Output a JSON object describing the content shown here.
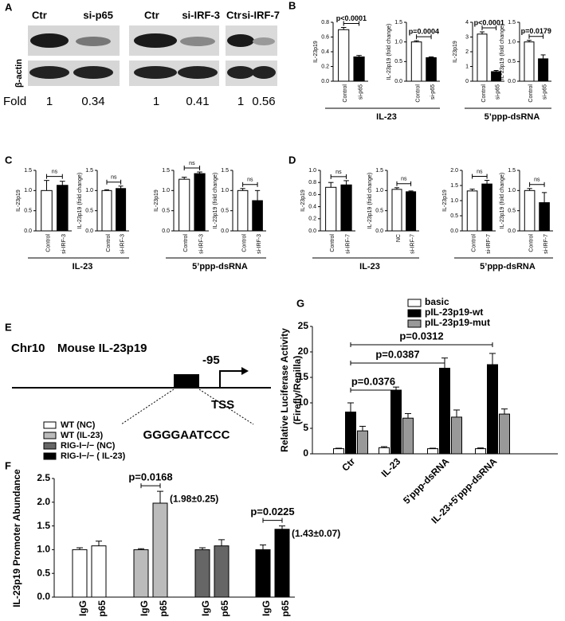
{
  "panel_labels": [
    "A",
    "B",
    "C",
    "D",
    "E",
    "F",
    "G"
  ],
  "blot": {
    "headers": [
      "Ctr",
      "si-p65",
      "Ctr",
      "si-IRF-3",
      "Ctr",
      "si-IRF-7"
    ],
    "loading_label": "β-actin",
    "fold_label": "Fold",
    "fold": [
      1,
      0.34,
      1,
      0.41,
      1,
      0.56
    ]
  },
  "diagram": {
    "chromosome": "Chr10",
    "gene": "Mouse IL-23p19",
    "position": "-95",
    "tss": "TSS",
    "motif": "GGGGAATCCC"
  },
  "group_labels": [
    "IL-23",
    "5’ppp-dsRNA",
    "IL-23",
    "5’ppp-dsRNA",
    "IL-23",
    "5’ppp-dsRNA"
  ],
  "chart_data": [
    {
      "type": "bar",
      "ylabel": "IL-23p19",
      "categories": [
        "Control",
        "si-p65"
      ],
      "values": [
        0.7,
        0.33
      ],
      "errors": [
        0.03,
        0.02
      ],
      "colors": [
        "#ffffff",
        "#000000"
      ],
      "ylim": [
        0,
        0.8
      ],
      "yticks": [
        {
          "value": 0,
          "label": "0.0"
        },
        0.2,
        0.4,
        0.6,
        0.8
      ],
      "annotation": "p<0.0001"
    },
    {
      "type": "bar",
      "ylabel": "IL-23p19 (fold change)",
      "categories": [
        "Control",
        "si-p65"
      ],
      "values": [
        1,
        0.6
      ],
      "errors": [
        0.03,
        0.02
      ],
      "colors": [
        "#ffffff",
        "#000000"
      ],
      "ylim": [
        0,
        1.5
      ],
      "yticks": [
        {
          "value": 0,
          "label": "0.0"
        },
        0.5,
        {
          "value": 1,
          "label": "1.0"
        },
        1.5
      ],
      "annotation": "p=0.0004"
    },
    {
      "type": "bar",
      "ylabel": "IL-23p19",
      "categories": [
        "Control",
        "si-p65"
      ],
      "values": [
        3.2,
        0.65
      ],
      "errors": [
        0.15,
        0.08
      ],
      "colors": [
        "#ffffff",
        "#000000"
      ],
      "ylim": [
        0,
        4
      ],
      "yticks": [
        0,
        1,
        2,
        3,
        4
      ],
      "annotation": "p<0.0001"
    },
    {
      "type": "bar",
      "ylabel": "IL-23p19 (fold change)",
      "categories": [
        "Control",
        "si-p65"
      ],
      "values": [
        1,
        0.57
      ],
      "errors": [
        0.04,
        0.1
      ],
      "colors": [
        "#ffffff",
        "#000000"
      ],
      "ylim": [
        0,
        1.5
      ],
      "yticks": [
        {
          "value": 0,
          "label": "0.0"
        },
        0.5,
        {
          "value": 1,
          "label": "1.0"
        },
        1.5
      ],
      "annotation": "p=0.0179"
    },
    {
      "type": "bar",
      "ylabel": "IL-23p19",
      "categories": [
        "Control",
        "si-IRF-3"
      ],
      "values": [
        1,
        1.13
      ],
      "errors": [
        0.25,
        0.1
      ],
      "colors": [
        "#ffffff",
        "#000000"
      ],
      "ylim": [
        0,
        1.5
      ],
      "yticks": [
        {
          "value": 0,
          "label": "0.0"
        },
        0.5,
        {
          "value": 1,
          "label": "1.0"
        },
        1.5
      ],
      "annotation": "ns"
    },
    {
      "type": "bar",
      "ylabel": "IL-23p19 (fold change)",
      "categories": [
        "Control",
        "si-IRF-3"
      ],
      "values": [
        1,
        1.05
      ],
      "errors": [
        0.02,
        0.06
      ],
      "colors": [
        "#ffffff",
        "#000000"
      ],
      "ylim": [
        0,
        1.5
      ],
      "yticks": [
        {
          "value": 0,
          "label": "0.0"
        },
        0.5,
        {
          "value": 1,
          "label": "1.0"
        },
        1.5
      ],
      "annotation": "ns"
    },
    {
      "type": "bar",
      "ylabel": "IL-23p19",
      "categories": [
        "Control",
        "si-IRF-3"
      ],
      "values": [
        1.28,
        1.42
      ],
      "errors": [
        0.05,
        0.04
      ],
      "colors": [
        "#ffffff",
        "#000000"
      ],
      "ylim": [
        0,
        1.5
      ],
      "yticks": [
        {
          "value": 0,
          "label": "0.0"
        },
        0.5,
        {
          "value": 1,
          "label": "1.0"
        },
        1.5
      ],
      "annotation": "ns"
    },
    {
      "type": "bar",
      "ylabel": "IL-23p19 (fold change)",
      "categories": [
        "Control",
        "si-IRF-3"
      ],
      "values": [
        1,
        0.75
      ],
      "errors": [
        0.05,
        0.25
      ],
      "colors": [
        "#ffffff",
        "#000000"
      ],
      "ylim": [
        0,
        1.5
      ],
      "yticks": [
        {
          "value": 0,
          "label": "0.0"
        },
        0.5,
        {
          "value": 1,
          "label": "1.0"
        },
        1.5
      ],
      "annotation": "ns"
    },
    {
      "type": "bar",
      "ylabel": "IL-23p19",
      "categories": [
        "Control",
        "si-IRF-7"
      ],
      "values": [
        0.72,
        0.76
      ],
      "errors": [
        0.08,
        0.07
      ],
      "colors": [
        "#ffffff",
        "#000000"
      ],
      "ylim": [
        0,
        1
      ],
      "yticks": [
        {
          "value": 0,
          "label": "0.0"
        },
        0.2,
        0.4,
        0.6,
        0.8,
        {
          "value": 1,
          "label": "1.0"
        }
      ],
      "annotation": "ns"
    },
    {
      "type": "bar",
      "ylabel": "IL-23p19 (fold change)",
      "categories": [
        "NC",
        "si-IRF-7"
      ],
      "values": [
        1.03,
        0.97
      ],
      "errors": [
        0.04,
        0.02
      ],
      "colors": [
        "#ffffff",
        "#000000"
      ],
      "ylim": [
        0,
        1.5
      ],
      "yticks": [
        {
          "value": 0,
          "label": "0.0"
        },
        0.5,
        {
          "value": 1,
          "label": "1.0"
        },
        1.5
      ],
      "annotation": "ns"
    },
    {
      "type": "bar",
      "ylabel": "IL-23p19",
      "categories": [
        "Control",
        "si-IRF-7"
      ],
      "values": [
        1.32,
        1.55
      ],
      "errors": [
        0.06,
        0.12
      ],
      "colors": [
        "#ffffff",
        "#000000"
      ],
      "ylim": [
        0,
        2
      ],
      "yticks": [
        {
          "value": 0,
          "label": "0.0"
        },
        0.5,
        {
          "value": 1,
          "label": "1.0"
        },
        1.5,
        {
          "value": 2,
          "label": "2.0"
        }
      ],
      "annotation": "ns"
    },
    {
      "type": "bar",
      "ylabel": "IL-23p19 (fold change)",
      "categories": [
        "Control",
        "si-IRF-7"
      ],
      "values": [
        1,
        0.7
      ],
      "errors": [
        0.05,
        0.25
      ],
      "colors": [
        "#ffffff",
        "#000000"
      ],
      "ylim": [
        0,
        1.5
      ],
      "yticks": [
        {
          "value": 0,
          "label": "0.0"
        },
        0.5,
        {
          "value": 1,
          "label": "1.0"
        },
        1.5
      ],
      "annotation": "ns"
    },
    {
      "type": "bar",
      "ylabel": "IL-23p19 Promoter Abundance",
      "categories": [
        "IgG",
        "p65",
        "IgG",
        "p65",
        "IgG",
        "p65",
        "IgG",
        "p65"
      ],
      "series": [
        {
          "name": "WT (NC)",
          "color": "#ffffff",
          "values": [
            1,
            1.08,
            null,
            null,
            null,
            null,
            null,
            null
          ],
          "errors": [
            0.04,
            0.1,
            null,
            null,
            null,
            null,
            null,
            null
          ]
        },
        {
          "name": "WT (IL-23)",
          "color": "#bbbbbb",
          "values": [
            null,
            null,
            1,
            1.98,
            null,
            null,
            null,
            null
          ],
          "errors": [
            null,
            null,
            0.02,
            0.25,
            null,
            null,
            null,
            null
          ]
        },
        {
          "name": "RIG-I−/− (NC)",
          "color": "#666666",
          "values": [
            null,
            null,
            null,
            null,
            1,
            1.08,
            null,
            null
          ],
          "errors": [
            null,
            null,
            null,
            null,
            0.04,
            0.13,
            null,
            null
          ]
        },
        {
          "name": "RIG-I−/− ( IL-23)",
          "color": "#000000",
          "values": [
            null,
            null,
            null,
            null,
            null,
            null,
            1,
            1.43
          ],
          "errors": [
            null,
            null,
            null,
            null,
            null,
            null,
            0.1,
            0.07
          ]
        }
      ],
      "ylim": [
        0,
        2.5
      ],
      "yticks": [
        {
          "value": 0,
          "label": "0.0"
        },
        0.5,
        {
          "value": 1,
          "label": "1.0"
        },
        1.5,
        {
          "value": 2,
          "label": "2.0"
        },
        2.5
      ],
      "annotations": [
        "p=0.0168",
        "(1.98±0.25)",
        "p=0.0225",
        "(1.43±0.07)"
      ]
    },
    {
      "type": "bar",
      "ylabel": "Relative Luciferase Activity",
      "ylabel_line2": "(Firefly/Renilla)",
      "categories": [
        "Ctr",
        "IL-23",
        "5'ppp-dsRNA",
        "IL-23+5'ppp-dsRNA"
      ],
      "series": [
        {
          "name": "basic",
          "color": "#ffffff",
          "values": [
            1,
            1.2,
            1,
            1
          ],
          "errors": [
            0.1,
            0.2,
            0.1,
            0.15
          ]
        },
        {
          "name": "pIL-23p19-wt",
          "color": "#000000",
          "values": [
            8.2,
            12.5,
            16.8,
            17.5
          ],
          "errors": [
            1.8,
            0.6,
            2,
            2.2
          ]
        },
        {
          "name": "pIL-23p19-mut",
          "color": "#999999",
          "values": [
            4.5,
            7,
            7.2,
            7.8
          ],
          "errors": [
            0.9,
            0.9,
            1.4,
            1
          ]
        }
      ],
      "ylim": [
        0,
        25
      ],
      "yticks": [
        0,
        5,
        10,
        15,
        20,
        25
      ],
      "legend": "upper right",
      "annotations": [
        "p=0.0376",
        "p=0.0387",
        "p=0.0312"
      ]
    }
  ]
}
